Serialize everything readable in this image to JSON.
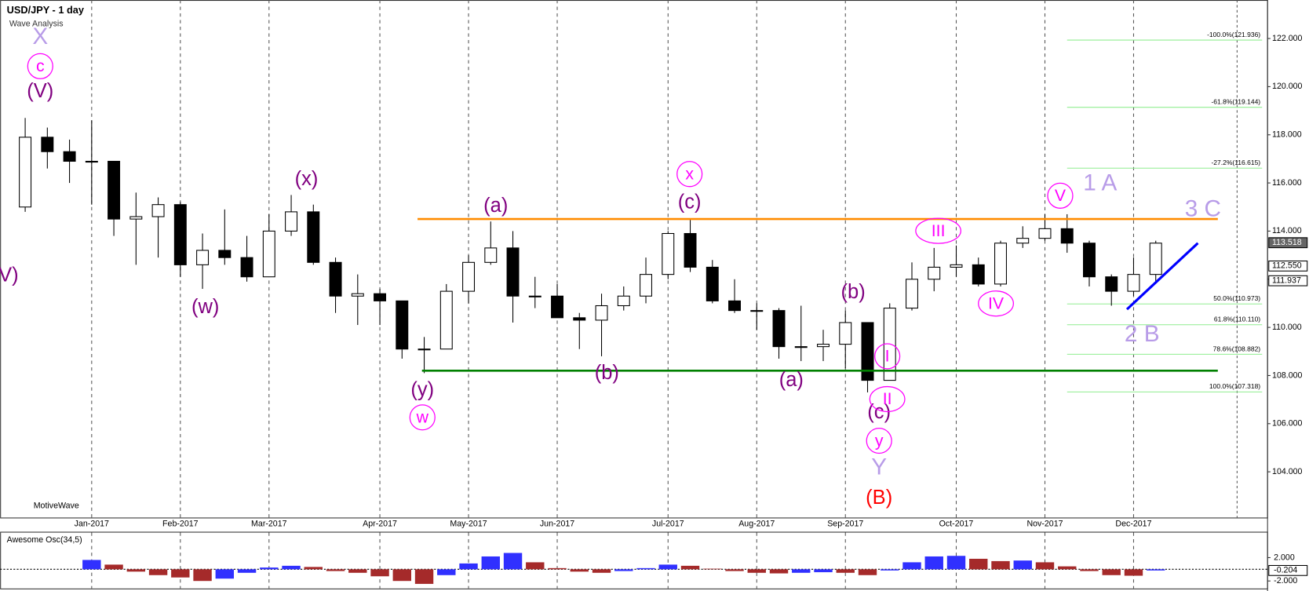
{
  "chart_data": [
    {
      "type": "candlestick",
      "title": "USD/JPY - 1 day",
      "subtitle": "Wave Analysis",
      "footer": "MotiveWave",
      "categories": [
        null,
        null,
        null,
        "Jan-2017",
        null,
        null,
        null,
        "Feb-2017",
        null,
        null,
        null,
        "Mar-2017",
        null,
        null,
        null,
        null,
        "Apr-2017",
        null,
        null,
        null,
        "May-2017",
        null,
        null,
        null,
        "Jun-2017",
        null,
        null,
        null,
        null,
        "Jul-2017",
        null,
        null,
        null,
        "Aug-2017",
        null,
        null,
        null,
        "Sep-2017",
        null,
        null,
        null,
        null,
        "Oct-2017",
        null,
        null,
        null,
        "Nov-2017",
        null,
        null,
        null,
        "Dec-2017",
        null
      ],
      "open": [
        115.0,
        117.9,
        117.3,
        116.9,
        116.9,
        114.5,
        114.6,
        115.1,
        112.6,
        113.2,
        112.9,
        112.1,
        114.0,
        114.8,
        112.7,
        111.3,
        111.4,
        111.1,
        109.1,
        109.1,
        111.5,
        112.7,
        113.3,
        111.3,
        111.3,
        110.4,
        110.3,
        110.9,
        111.3,
        112.2,
        113.9,
        112.5,
        111.1,
        110.7,
        110.7,
        109.2,
        109.2,
        109.3,
        110.2,
        107.8,
        110.8,
        112.0,
        112.5,
        112.6,
        111.8,
        113.5,
        113.7,
        114.1,
        113.5,
        112.1,
        111.5,
        112.2
      ],
      "high": [
        118.7,
        118.3,
        117.8,
        118.6,
        116.9,
        115.6,
        115.4,
        115.2,
        113.9,
        114.9,
        113.8,
        114.7,
        115.5,
        115.1,
        112.9,
        112.2,
        111.6,
        111.1,
        109.6,
        111.8,
        113.0,
        114.4,
        114.0,
        112.1,
        111.8,
        110.6,
        111.4,
        111.7,
        112.9,
        114.0,
        114.5,
        112.8,
        112.0,
        111.0,
        110.8,
        110.9,
        109.9,
        110.7,
        110.2,
        111.0,
        112.7,
        113.3,
        113.4,
        112.9,
        113.6,
        114.2,
        114.7,
        114.7,
        113.6,
        112.2,
        112.9,
        113.6
      ],
      "low": [
        114.8,
        116.6,
        116.0,
        115.1,
        113.8,
        112.6,
        112.9,
        112.1,
        111.6,
        112.6,
        111.9,
        112.1,
        113.8,
        112.6,
        110.6,
        110.1,
        110.1,
        108.7,
        108.1,
        109.1,
        111.0,
        112.6,
        110.2,
        110.8,
        110.4,
        109.1,
        108.8,
        110.7,
        111.0,
        112.0,
        112.3,
        111.0,
        110.6,
        109.9,
        108.7,
        108.6,
        108.6,
        108.3,
        107.3,
        107.8,
        110.7,
        111.5,
        112.1,
        111.7,
        111.7,
        113.3,
        113.6,
        113.1,
        111.7,
        110.9,
        111.3,
        111.9
      ],
      "close": [
        117.9,
        117.3,
        116.9,
        116.9,
        114.5,
        114.6,
        115.1,
        112.6,
        113.2,
        112.9,
        112.1,
        114.0,
        114.8,
        112.7,
        111.3,
        111.4,
        111.1,
        109.1,
        109.1,
        111.5,
        112.7,
        113.3,
        111.3,
        111.3,
        110.4,
        110.3,
        110.9,
        111.3,
        112.2,
        113.9,
        112.5,
        111.1,
        110.7,
        110.7,
        109.2,
        109.2,
        109.3,
        110.2,
        107.8,
        110.8,
        112.0,
        112.5,
        112.6,
        111.8,
        113.5,
        113.7,
        114.1,
        113.5,
        112.1,
        111.5,
        112.2,
        113.5
      ],
      "up_color": "#ffffff",
      "down_color": "#000000",
      "ylim": [
        102.1,
        123.6
      ],
      "yticks": [
        {
          "value": 104,
          "label": "104.000"
        },
        {
          "value": 106,
          "label": "106.000"
        },
        {
          "value": 108,
          "label": "108.000"
        },
        {
          "value": 110,
          "label": "110.000"
        },
        {
          "value": 112,
          "label": "112.000"
        },
        {
          "value": 114,
          "label": "114.000"
        },
        {
          "value": 116,
          "label": "116.000"
        },
        {
          "value": 118,
          "label": "118.000"
        },
        {
          "value": 120,
          "label": "120.000"
        },
        {
          "value": 122,
          "label": "122.000"
        }
      ],
      "price_markers": [
        {
          "value": 113.518,
          "label": "113.518",
          "color": "#666666"
        },
        {
          "value": 112.55,
          "label": "112.550",
          "color": "#ffffff"
        },
        {
          "value": 111.937,
          "label": "111.937",
          "color": "#ffffff"
        }
      ],
      "levels": [
        {
          "color": "#ff8c00",
          "value": 114.5,
          "start": 17.7,
          "end": 53.8
        },
        {
          "color": "#008000",
          "value": 108.2,
          "start": 17.9,
          "end": 53.8
        }
      ],
      "trendline": {
        "color": "#0000ff",
        "start": [
          49.7,
          110.75
        ],
        "end": [
          52.9,
          113.5
        ]
      },
      "fib": {
        "color": "#90ee90",
        "start": 47,
        "levels": [
          {
            "value": 121.936,
            "label": "-100.0%(121.936)"
          },
          {
            "value": 119.144,
            "label": "-61.8%(119.144)"
          },
          {
            "value": 116.615,
            "label": "-27.2%(116.615)"
          },
          {
            "value": 110.973,
            "label": "50.0%(110.973)"
          },
          {
            "value": 110.11,
            "label": "61.8%(110.110)"
          },
          {
            "value": 108.882,
            "label": "78.6%(108.882)"
          },
          {
            "value": 107.318,
            "label": "100.0%(107.318)"
          }
        ]
      },
      "wave_styles": {
        "purple": "#800080",
        "circled": "#ff00ff",
        "lilac": "#b89ce8",
        "red": "#ff0000"
      },
      "waves": [
        {
          "text": "X",
          "x": 0.68,
          "y": 122.07,
          "style": "lilac"
        },
        {
          "text": "c",
          "x": 0.68,
          "y": 120.85,
          "style": "circled"
        },
        {
          "text": "(V)",
          "x": 0.68,
          "y": 119.81,
          "style": "purple"
        },
        {
          "text": "V)",
          "x": -0.75,
          "y": 112.17,
          "style": "purple"
        },
        {
          "text": "(w)",
          "x": 8.13,
          "y": 110.85,
          "style": "purple"
        },
        {
          "text": "(x)",
          "x": 12.69,
          "y": 116.16,
          "style": "purple"
        },
        {
          "text": "(y)",
          "x": 17.92,
          "y": 107.41,
          "style": "purple"
        },
        {
          "text": "w",
          "x": 17.92,
          "y": 106.26,
          "style": "circled"
        },
        {
          "text": "(a)",
          "x": 21.23,
          "y": 115.05,
          "style": "purple"
        },
        {
          "text": "(b)",
          "x": 26.24,
          "y": 108.1,
          "style": "purple"
        },
        {
          "text": "x",
          "x": 29.97,
          "y": 116.37,
          "style": "circled"
        },
        {
          "text": "(c)",
          "x": 29.97,
          "y": 115.19,
          "style": "purple"
        },
        {
          "text": "(a)",
          "x": 34.56,
          "y": 107.82,
          "style": "purple"
        },
        {
          "text": "(b)",
          "x": 37.35,
          "y": 111.47,
          "style": "purple"
        },
        {
          "text": "(c)",
          "x": 38.52,
          "y": 106.47,
          "style": "purple"
        },
        {
          "text": "y",
          "x": 38.52,
          "y": 105.29,
          "style": "circled"
        },
        {
          "text": "Y",
          "x": 38.52,
          "y": 104.18,
          "style": "lilac"
        },
        {
          "text": "(B)",
          "x": 38.52,
          "y": 102.92,
          "style": "red"
        },
        {
          "text": "I",
          "x": 38.89,
          "y": 108.8,
          "style": "circled"
        },
        {
          "text": "II",
          "x": 38.89,
          "y": 107.02,
          "style": "circled"
        },
        {
          "text": "III",
          "x": 41.19,
          "y": 114.01,
          "style": "circled"
        },
        {
          "text": "IV",
          "x": 43.79,
          "y": 110.99,
          "style": "circled"
        },
        {
          "text": "V",
          "x": 46.69,
          "y": 115.47,
          "style": "circled"
        },
        {
          "text": "1 A",
          "x": 48.49,
          "y": 115.99,
          "style": "lilac"
        },
        {
          "text": "3 C",
          "x": 53.13,
          "y": 114.91,
          "style": "lilac"
        },
        {
          "text": "2 B",
          "x": 50.38,
          "y": 109.7,
          "style": "lilac"
        }
      ]
    },
    {
      "type": "histogram-osc",
      "title": "Awesome Osc(34,5)",
      "values": [
        null,
        null,
        null,
        1.6,
        0.8,
        -0.4,
        -1.0,
        -1.4,
        -2.0,
        -1.6,
        -0.6,
        0.3,
        0.6,
        0.4,
        -0.3,
        -0.6,
        -1.2,
        -2.0,
        -2.5,
        -1.0,
        1.0,
        2.2,
        2.8,
        1.2,
        0.2,
        -0.4,
        -0.6,
        -0.3,
        0.2,
        0.8,
        0.6,
        0.1,
        -0.3,
        -0.6,
        -0.7,
        -0.6,
        -0.5,
        -0.6,
        -1.0,
        -0.2,
        1.2,
        2.2,
        2.3,
        1.8,
        1.4,
        1.5,
        1.2,
        0.5,
        -0.3,
        -1.0,
        -1.1,
        -0.204
      ],
      "up_color": "#3030ff",
      "down_color": "#a52a2a",
      "ylim": [
        -3.29,
        6.29
      ],
      "yticks": [
        {
          "value": 2,
          "label": "2.000"
        },
        {
          "value": -2,
          "label": "-2.000"
        }
      ],
      "last_marker": {
        "value": -0.204,
        "label": "-0.204"
      }
    }
  ]
}
